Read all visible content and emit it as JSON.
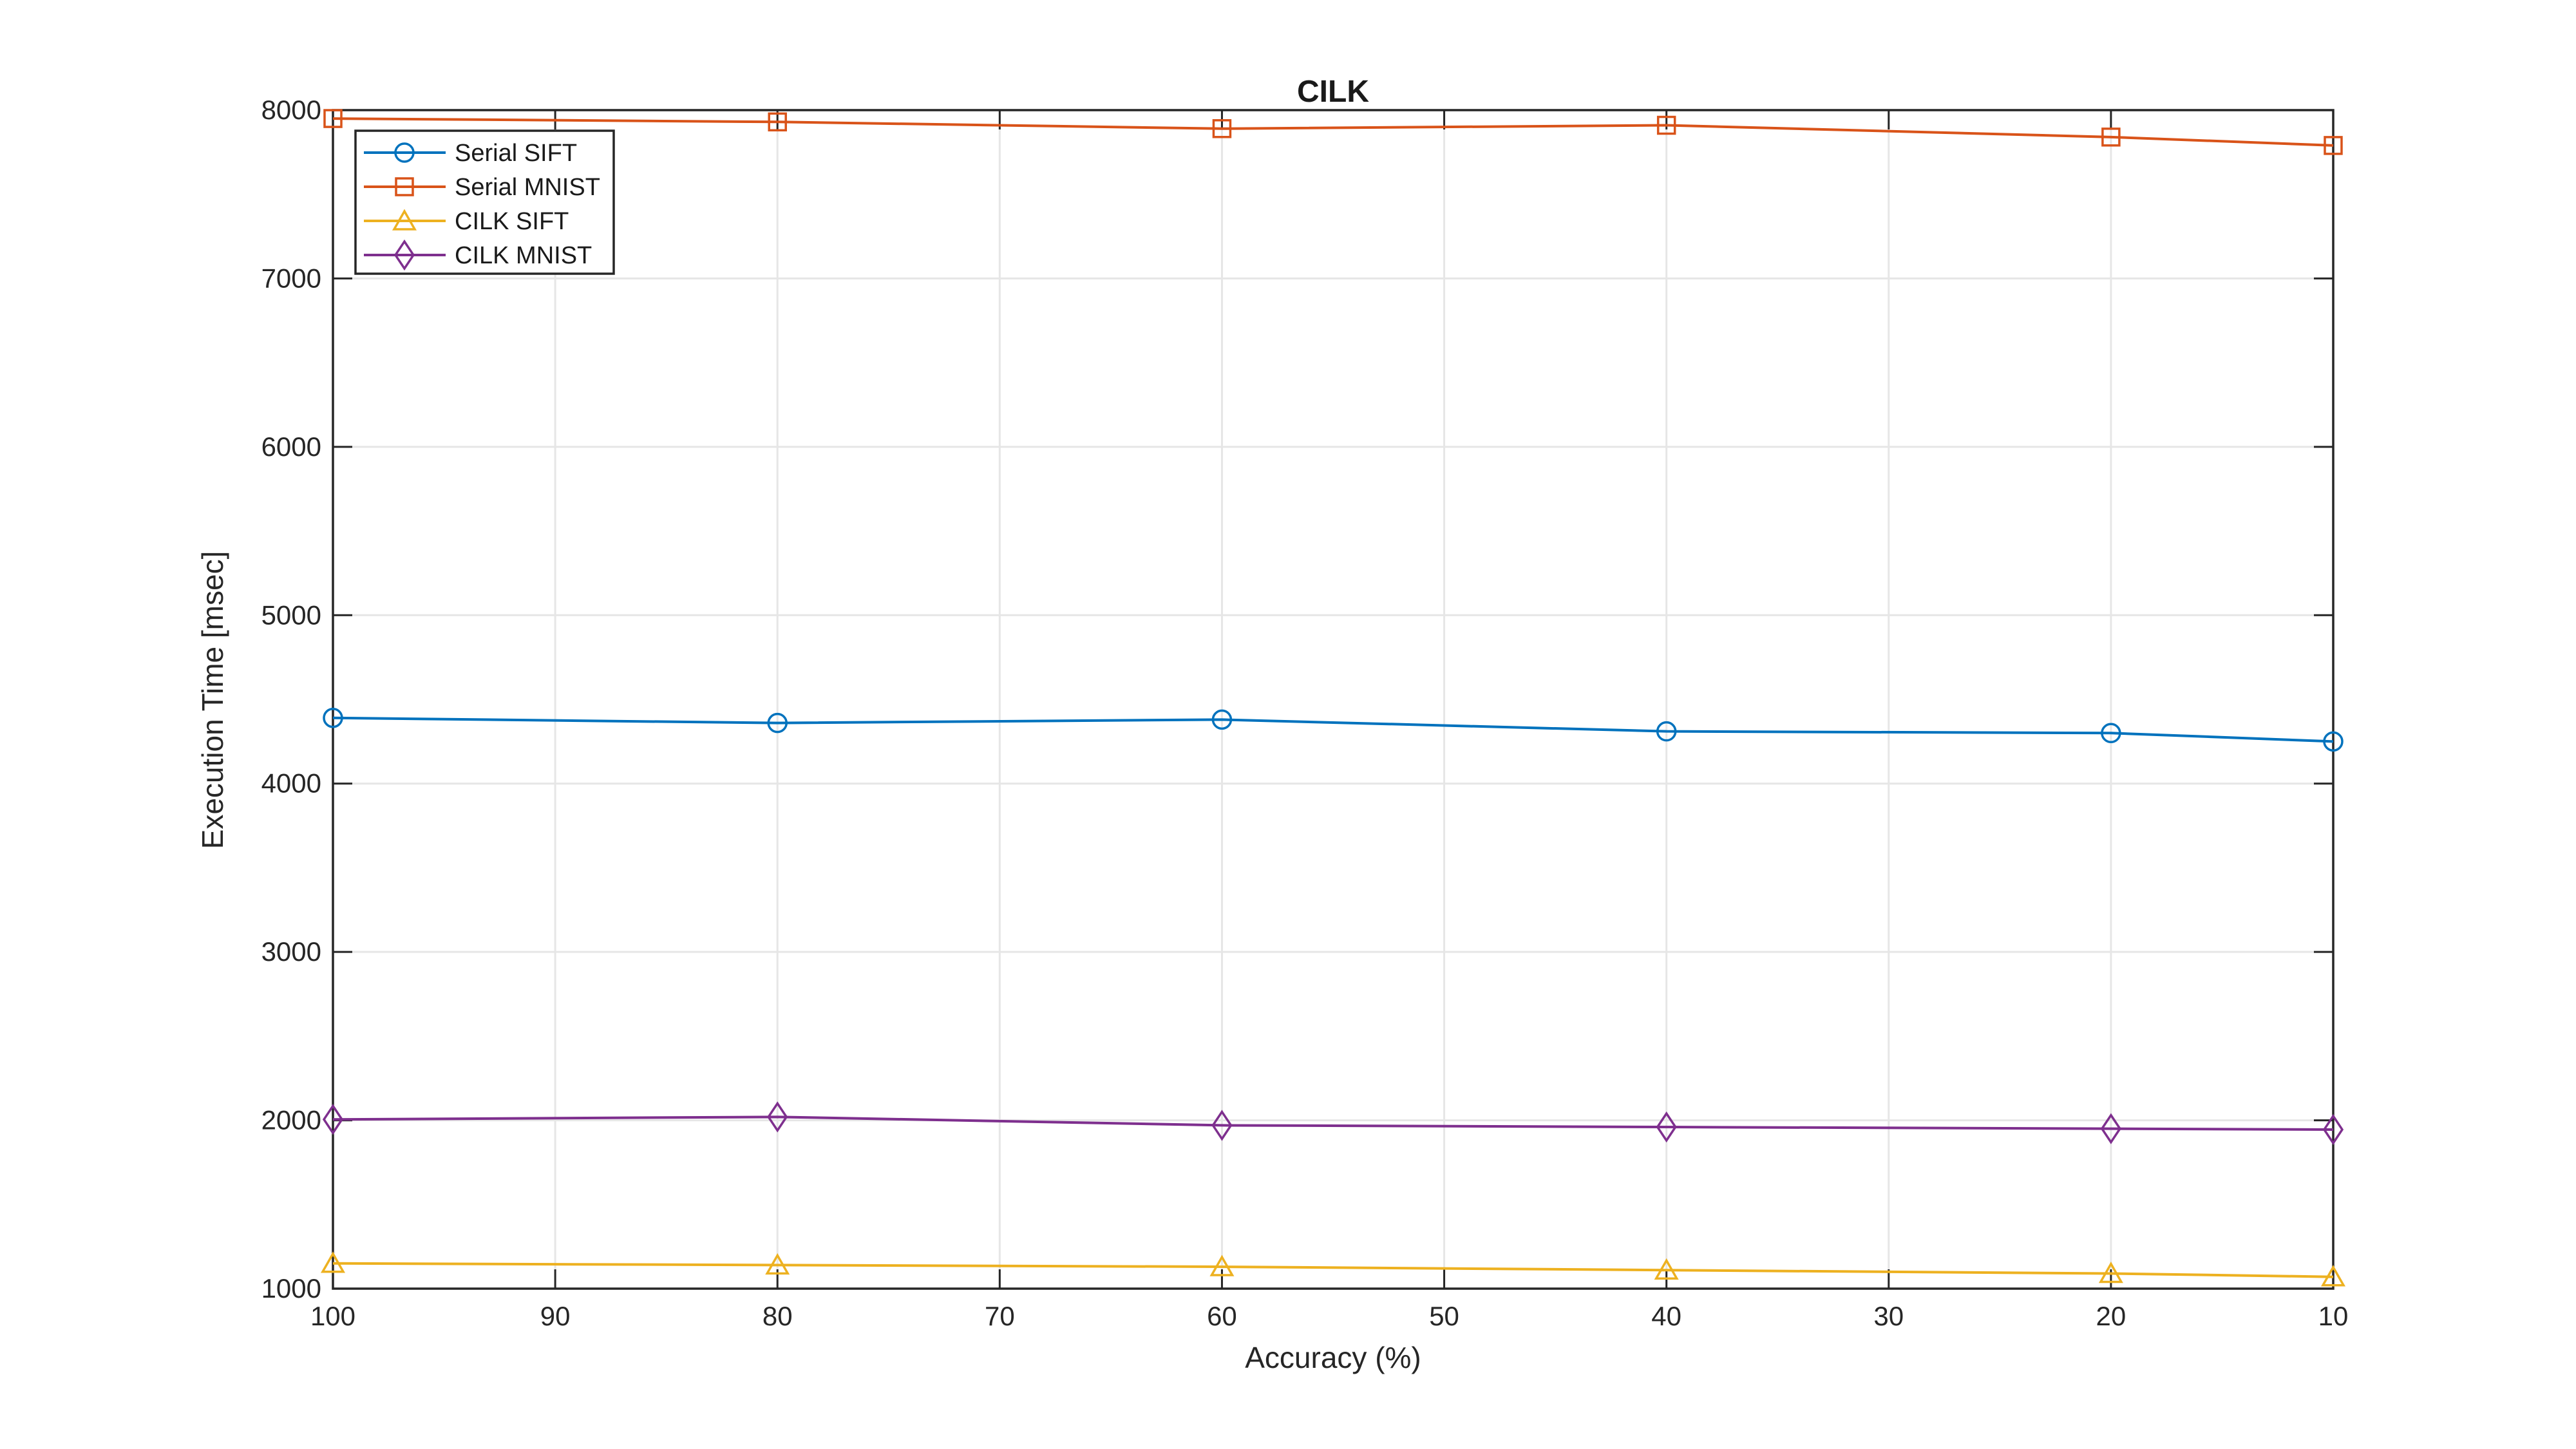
{
  "figure": {
    "background": "#ffffff"
  },
  "chart_data": {
    "type": "line",
    "title": "CILK",
    "xlabel": "Accuracy (%)",
    "ylabel": "Execution Time [msec]",
    "xlim": [
      100,
      10
    ],
    "ylim": [
      1000,
      8000
    ],
    "x_reversed": true,
    "grid": true,
    "x_ticks": [
      100,
      90,
      80,
      70,
      60,
      50,
      40,
      30,
      20,
      10
    ],
    "y_ticks": [
      1000,
      2000,
      3000,
      4000,
      5000,
      6000,
      7000,
      8000
    ],
    "x": [
      100,
      80,
      60,
      40,
      20,
      10
    ],
    "series": [
      {
        "name": "Serial SIFT",
        "color": "#0072BD",
        "marker": "circle",
        "values": [
          4390,
          4360,
          4380,
          4310,
          4300,
          4250
        ]
      },
      {
        "name": "Serial MNIST",
        "color": "#D95319",
        "marker": "square",
        "values": [
          7950,
          7930,
          7890,
          7910,
          7840,
          7790
        ]
      },
      {
        "name": "CILK SIFT",
        "color": "#EDB120",
        "marker": "triangle",
        "values": [
          1150,
          1140,
          1130,
          1110,
          1090,
          1070
        ]
      },
      {
        "name": "CILK MNIST",
        "color": "#7E2F8E",
        "marker": "diamond",
        "values": [
          2005,
          2020,
          1970,
          1960,
          1950,
          1945
        ]
      }
    ],
    "legend_position": "top-left",
    "axis_color": "#262626",
    "grid_color": "#e6e6e6"
  }
}
